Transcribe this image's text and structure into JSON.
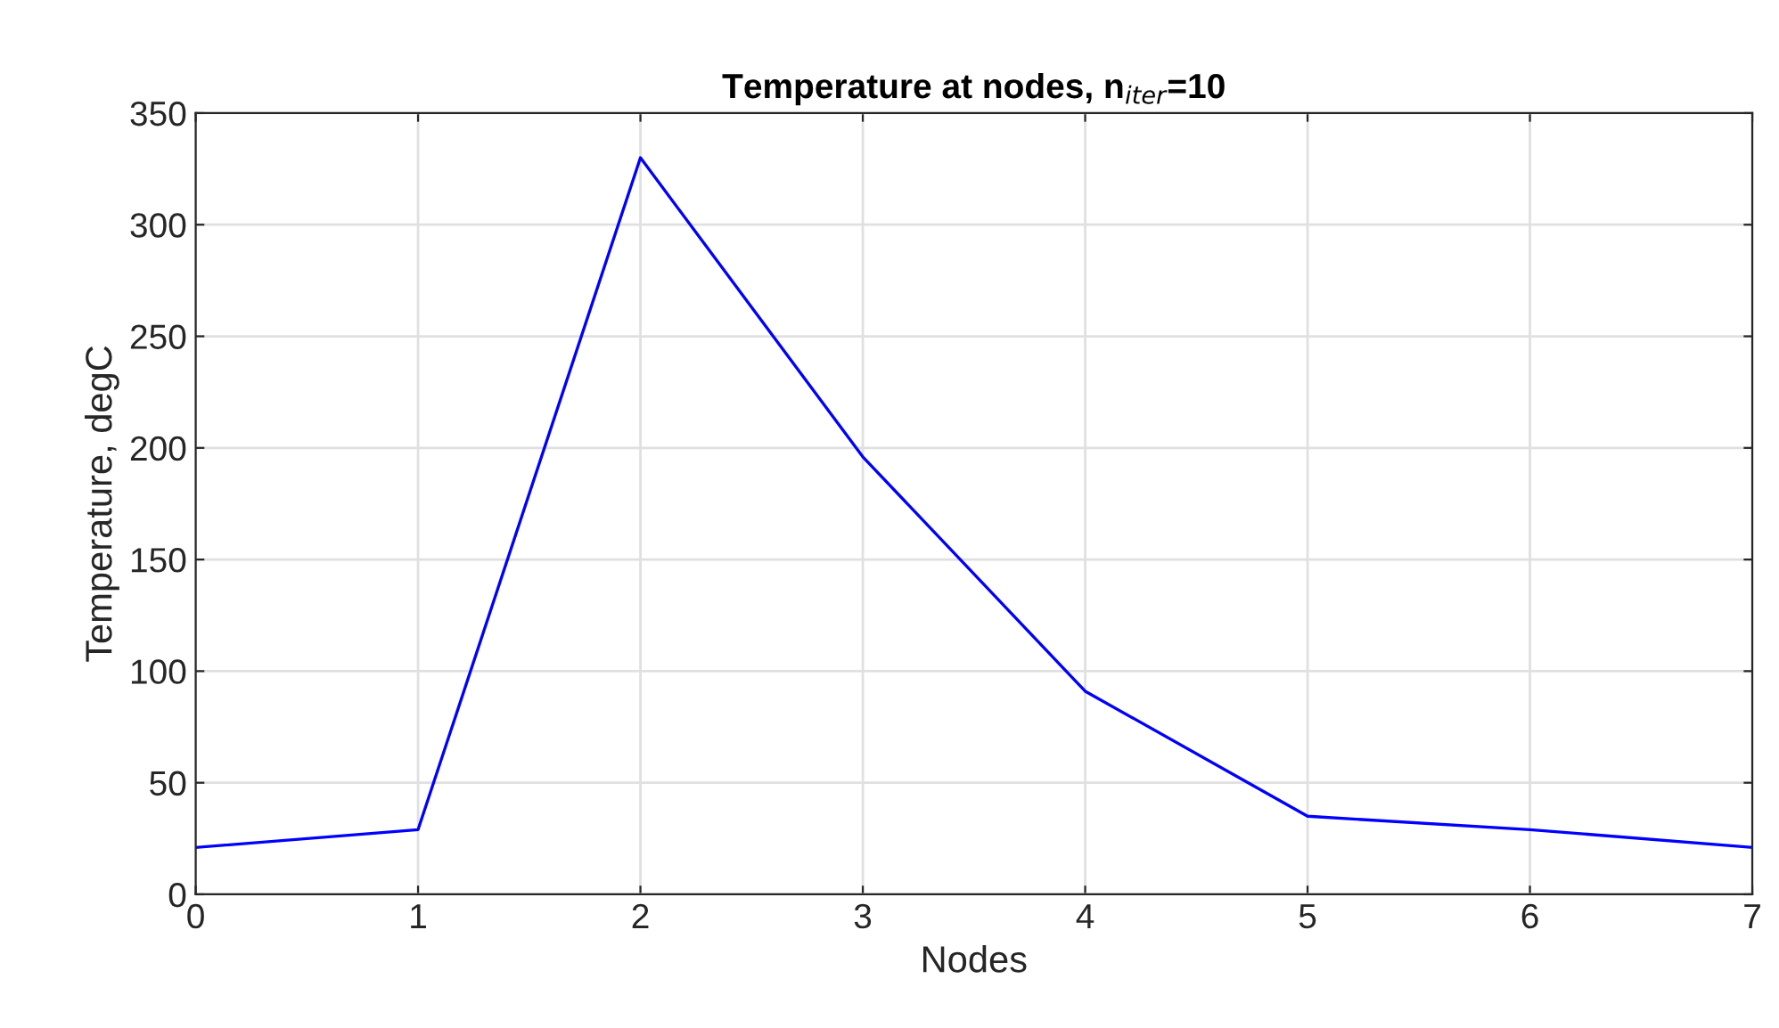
{
  "chart_data": {
    "type": "line",
    "title": "Temperature at nodes, n$_{iter}$=10",
    "xlabel": "Nodes",
    "ylabel": "Temperature, degC",
    "x": [
      0,
      1,
      2,
      3,
      4,
      5,
      6,
      7
    ],
    "series": [
      {
        "color": "#0000ff",
        "values": [
          21,
          29,
          330,
          196,
          91,
          35,
          29,
          21
        ]
      }
    ],
    "xlim": [
      0,
      7
    ],
    "xticks": [
      0,
      1,
      2,
      3,
      4,
      5,
      6,
      7
    ],
    "ylim": [
      0,
      350
    ],
    "yticks": [
      0,
      50,
      100,
      150,
      200,
      250,
      300,
      350
    ],
    "grid": true,
    "line_style": "solid",
    "marker": "none"
  }
}
